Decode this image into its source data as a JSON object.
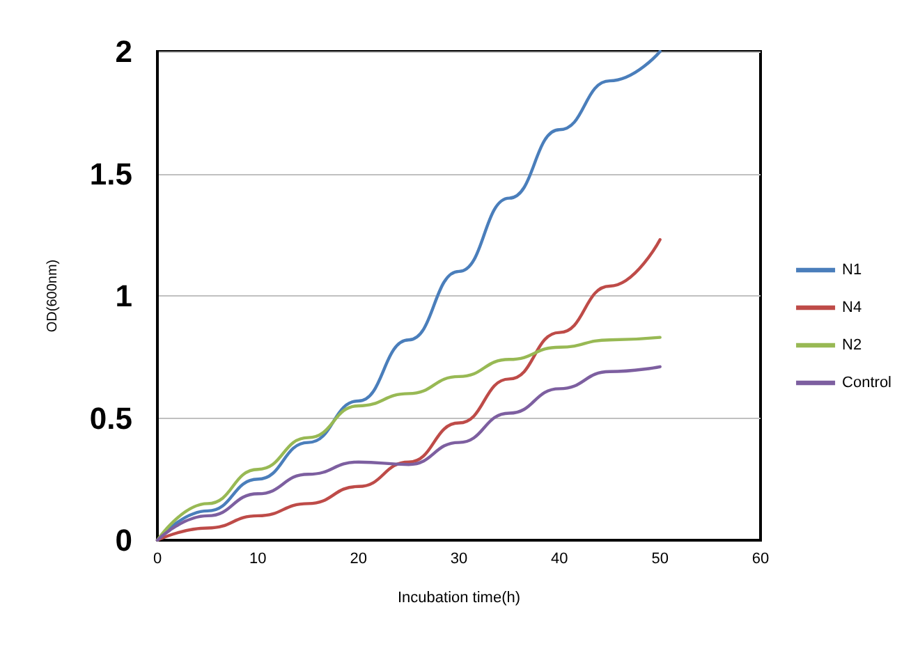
{
  "chart_data": {
    "type": "line",
    "xlabel": "Incubation time(h)",
    "ylabel": "OD(600nm)",
    "x": [
      0,
      5,
      10,
      15,
      20,
      25,
      30,
      35,
      40,
      45,
      50
    ],
    "series": [
      {
        "name": "N1",
        "color": "#4a7ebb",
        "values": [
          0,
          0.12,
          0.25,
          0.4,
          0.57,
          0.82,
          1.1,
          1.4,
          1.68,
          1.88,
          2.0
        ]
      },
      {
        "name": "N4",
        "color": "#be4b48",
        "values": [
          0,
          0.05,
          0.1,
          0.15,
          0.22,
          0.32,
          0.48,
          0.66,
          0.85,
          1.04,
          1.23
        ]
      },
      {
        "name": "N2",
        "color": "#98b954",
        "values": [
          0,
          0.15,
          0.29,
          0.42,
          0.55,
          0.6,
          0.67,
          0.74,
          0.79,
          0.82,
          0.83
        ]
      },
      {
        "name": "Control",
        "color": "#7d5fa0",
        "values": [
          0,
          0.1,
          0.19,
          0.27,
          0.32,
          0.31,
          0.4,
          0.52,
          0.62,
          0.69,
          0.71
        ]
      }
    ],
    "xlim": [
      0,
      60
    ],
    "xticks": [
      0,
      10,
      20,
      30,
      40,
      50,
      60
    ],
    "ylim": [
      0,
      2
    ],
    "yticks": [
      0,
      0.5,
      1,
      1.5,
      2
    ],
    "grid": "y",
    "legend": "right",
    "marker": "none",
    "line_style": "solid"
  }
}
